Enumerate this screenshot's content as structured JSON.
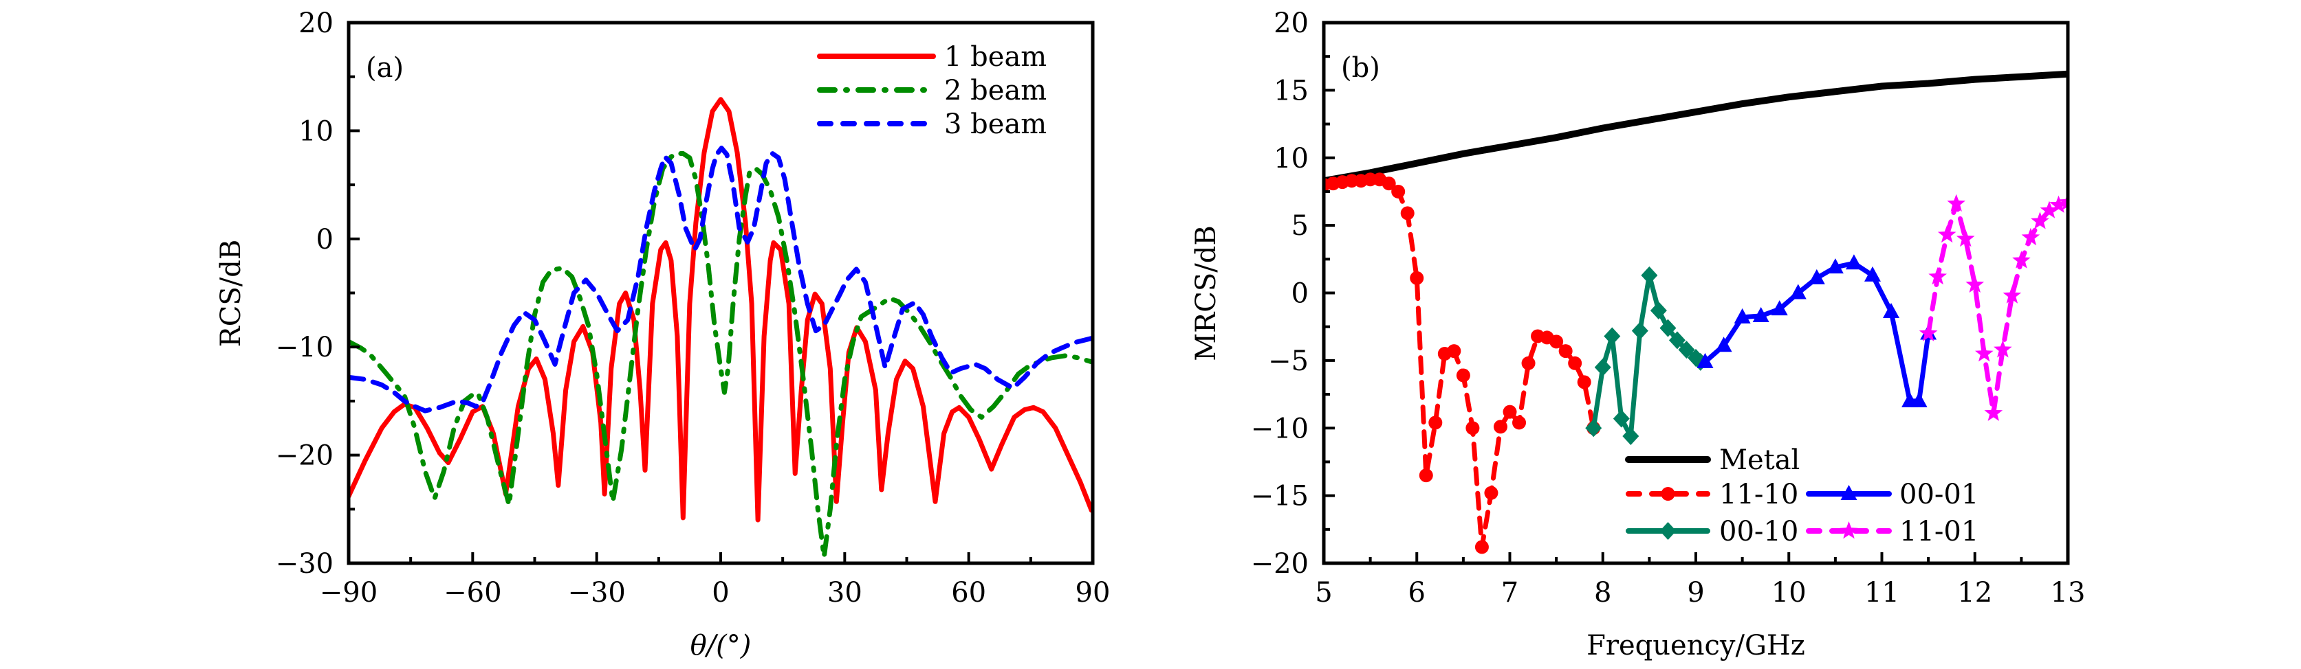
{
  "chart_data": [
    {
      "id": "a",
      "type": "line",
      "panel_label": "(a)",
      "title": "",
      "xlabel": "θ/(°)",
      "ylabel": "RCS/dB",
      "xlim": [
        -90,
        90
      ],
      "ylim": [
        -30,
        20
      ],
      "xticks": [
        -90,
        -60,
        -30,
        0,
        30,
        60,
        90
      ],
      "xtick_labels": [
        "−90",
        "−60",
        "−30",
        "0",
        "30",
        "60",
        "90"
      ],
      "yticks": [
        -30,
        -20,
        -10,
        0,
        10,
        20
      ],
      "ytick_labels": [
        "−30",
        "−20",
        "−10",
        "0",
        "10",
        "20"
      ],
      "x_minor_step": 15,
      "y_minor_step": 5,
      "grid": false,
      "legend_position": "top-right",
      "series": [
        {
          "name": "1 beam",
          "color": "#ff0000",
          "style": "solid",
          "x": [
            -90,
            -86,
            -82,
            -79,
            -76.5,
            -74,
            -71,
            -68,
            -65.9,
            -63,
            -60,
            -57.6,
            -55,
            -52,
            -49,
            -46.5,
            -44.6,
            -42.5,
            -40.5,
            -39.3,
            -37.5,
            -35.5,
            -33.3,
            -31,
            -29,
            -28.1,
            -26.5,
            -24.5,
            -23,
            -21,
            -19.5,
            -18.3,
            -16.5,
            -14.5,
            -13.3,
            -12,
            -10.5,
            -9.1,
            -7.5,
            -6,
            -4,
            -2,
            0,
            2,
            4,
            6,
            7.5,
            9.0,
            10.5,
            12,
            12.8,
            14.5,
            16.5,
            18,
            19.5,
            21,
            22.8,
            24.5,
            26.5,
            28,
            29.5,
            31,
            32.9,
            35,
            37.5,
            38.9,
            40.5,
            42.5,
            44.6,
            46.5,
            49,
            51.9,
            54,
            56,
            57.7,
            60,
            62.5,
            65.5,
            68,
            71,
            73.5,
            75.7,
            78,
            81,
            84,
            87,
            89.7
          ],
          "values": [
            -23.8,
            -20.5,
            -17.5,
            -16.0,
            -15.3,
            -15.6,
            -17.5,
            -19.8,
            -20.7,
            -18.5,
            -16.0,
            -15.5,
            -18.0,
            -23.6,
            -15.5,
            -12.0,
            -11.1,
            -13.0,
            -18.0,
            -22.8,
            -14.0,
            -9.5,
            -8.1,
            -10.5,
            -17.0,
            -23.6,
            -12.0,
            -6.0,
            -5.0,
            -7.5,
            -14.0,
            -21.4,
            -6.0,
            -1.0,
            -0.35,
            -2.0,
            -9.0,
            -25.8,
            -6.0,
            1.5,
            8.0,
            11.8,
            12.9,
            11.8,
            8.0,
            1.5,
            -6.0,
            -26.0,
            -9.0,
            -2.0,
            -0.35,
            -1.0,
            -6.0,
            -21.7,
            -14.0,
            -7.5,
            -5.1,
            -6.0,
            -12.0,
            -24.3,
            -17.0,
            -10.5,
            -8.2,
            -9.5,
            -14.0,
            -23.2,
            -18.0,
            -13.0,
            -11.3,
            -12.0,
            -15.5,
            -24.3,
            -18.0,
            -16.0,
            -15.6,
            -16.5,
            -18.5,
            -21.3,
            -19.0,
            -16.5,
            -15.8,
            -15.6,
            -16.0,
            -17.5,
            -20.0,
            -22.5,
            -25.1
          ]
        },
        {
          "name": "2 beam",
          "color": "#008c00",
          "style": "dash-dot",
          "x": [
            -90,
            -87,
            -84.8,
            -81,
            -78,
            -76.5,
            -74,
            -71.5,
            -69.2,
            -67,
            -64.5,
            -62,
            -60,
            -58.7,
            -56.5,
            -54,
            -51.2,
            -49,
            -47,
            -45,
            -43,
            -41,
            -38.3,
            -36,
            -34,
            -32,
            -30,
            -28,
            -26.1,
            -24,
            -22,
            -20,
            -18,
            -16,
            -14,
            -12,
            -10.5,
            -9.1,
            -7.5,
            -6,
            -4.5,
            -3,
            -1.5,
            0,
            0.9,
            1.8,
            3,
            4.5,
            6,
            7,
            8.5,
            10,
            12,
            14,
            16,
            18,
            20,
            22,
            23.5,
            25,
            26.5,
            28,
            30,
            32,
            34,
            37.3,
            40.8,
            43,
            45.5,
            48,
            50.8,
            53,
            55.6,
            58,
            60.5,
            63.1,
            66,
            69.4,
            72,
            74.5,
            76.9,
            80,
            83.5,
            86.5,
            89.9
          ],
          "values": [
            -9.5,
            -10.1,
            -10.7,
            -12.4,
            -13.8,
            -14.5,
            -17.5,
            -21.5,
            -24.0,
            -21.5,
            -17.5,
            -15.0,
            -14.4,
            -14.3,
            -16.5,
            -20.5,
            -24.6,
            -18.0,
            -12.0,
            -7.0,
            -4.0,
            -2.9,
            -2.7,
            -3.5,
            -5.5,
            -8.0,
            -12.5,
            -18.5,
            -24.3,
            -19.5,
            -13.0,
            -6.5,
            -1.0,
            3.5,
            6.5,
            7.6,
            7.9,
            7.9,
            7.5,
            5.5,
            2.0,
            -2.5,
            -8.0,
            -12.0,
            -14.2,
            -12.0,
            -6.0,
            0.0,
            4.0,
            6.2,
            6.5,
            6.0,
            4.5,
            2.0,
            -2.0,
            -7.0,
            -13.0,
            -19.5,
            -25.0,
            -29.4,
            -25.0,
            -19.0,
            -13.0,
            -9.5,
            -7.2,
            -6.4,
            -5.5,
            -5.8,
            -6.8,
            -8.0,
            -9.7,
            -11.2,
            -12.8,
            -14.5,
            -15.8,
            -16.5,
            -15.5,
            -13.9,
            -12.5,
            -11.8,
            -11.4,
            -11.0,
            -10.8,
            -11.0,
            -11.4
          ]
        },
        {
          "name": "3 beam",
          "color": "#0000ff",
          "style": "dashed",
          "x": [
            -90,
            -86,
            -82,
            -79,
            -76.5,
            -74,
            -71.5,
            -68,
            -63.7,
            -61,
            -59.2,
            -57.5,
            -55.9,
            -53,
            -50,
            -47.6,
            -45,
            -42.5,
            -40.1,
            -38,
            -35.5,
            -32.6,
            -30,
            -27.1,
            -25,
            -22.5,
            -20,
            -18,
            -16,
            -14.5,
            -13.5,
            -12,
            -10,
            -8.5,
            -6.3,
            -5,
            -3.5,
            -2,
            -1,
            0.2,
            1.5,
            3,
            4.5,
            6.5,
            8,
            9.5,
            11,
            12.5,
            14,
            15.5,
            17,
            19,
            21,
            23,
            25,
            27,
            29,
            30.5,
            32.8,
            35,
            37.5,
            39.8,
            42,
            44,
            46.9,
            49,
            51,
            53.5,
            55.7,
            58,
            61.6,
            64,
            67,
            70.7,
            73.5,
            76.5,
            79.5,
            82.4,
            85.5,
            89.7
          ],
          "values": [
            -12.8,
            -13.0,
            -13.5,
            -14.2,
            -15.0,
            -15.5,
            -15.9,
            -15.6,
            -15.0,
            -15.2,
            -15.5,
            -15.0,
            -13.5,
            -10.5,
            -8.0,
            -6.8,
            -7.5,
            -9.5,
            -11.6,
            -8.5,
            -5.0,
            -3.8,
            -5.0,
            -7.1,
            -8.5,
            -7.5,
            -3.5,
            1.0,
            4.5,
            6.5,
            7.6,
            7.0,
            4.0,
            1.0,
            -1.0,
            0.0,
            3.5,
            6.5,
            7.8,
            8.4,
            7.8,
            5.0,
            1.0,
            -0.3,
            1.0,
            4.0,
            7.0,
            7.9,
            7.5,
            5.5,
            2.0,
            -2.5,
            -6.0,
            -8.5,
            -8.0,
            -6.5,
            -5.0,
            -3.8,
            -2.8,
            -4.0,
            -8.0,
            -11.9,
            -9.0,
            -6.5,
            -5.9,
            -7.0,
            -9.0,
            -11.0,
            -12.4,
            -12.0,
            -11.6,
            -12.0,
            -13.0,
            -13.8,
            -12.8,
            -11.5,
            -10.6,
            -10.1,
            -9.6,
            -9.2
          ]
        }
      ]
    },
    {
      "id": "b",
      "type": "line",
      "panel_label": "(b)",
      "title": "",
      "xlabel": "Frequency/GHz",
      "ylabel": "MRCS/dB",
      "xlim": [
        5,
        13
      ],
      "ylim": [
        -20,
        20
      ],
      "xticks": [
        5,
        6,
        7,
        8,
        9,
        10,
        11,
        12,
        13
      ],
      "xtick_labels": [
        "5",
        "6",
        "7",
        "8",
        "9",
        "10",
        "11",
        "12",
        "13"
      ],
      "yticks": [
        -20,
        -15,
        -10,
        -5,
        0,
        5,
        10,
        15,
        20
      ],
      "ytick_labels": [
        "−20",
        "−15",
        "−10",
        "−5",
        "0",
        "5",
        "10",
        "15",
        "20"
      ],
      "x_minor_step": 0.5,
      "y_minor_step": 2.5,
      "grid": false,
      "legend_position": "bottom-center",
      "series": [
        {
          "name": "Metal",
          "color": "#000000",
          "style": "solid",
          "marker": "none",
          "x": [
            5,
            5.5,
            6,
            6.5,
            7,
            7.5,
            8,
            8.5,
            9,
            9.5,
            10,
            10.5,
            11,
            11.5,
            12,
            12.5,
            13
          ],
          "values": [
            8.3,
            8.9,
            9.6,
            10.3,
            10.9,
            11.5,
            12.2,
            12.8,
            13.4,
            14.0,
            14.5,
            14.9,
            15.3,
            15.5,
            15.8,
            16.0,
            16.2
          ]
        },
        {
          "name": "11-10",
          "color": "#ff0000",
          "style": "dashed",
          "marker": "circle",
          "x": [
            5.0,
            5.1,
            5.2,
            5.3,
            5.4,
            5.5,
            5.6,
            5.7,
            5.8,
            5.9,
            6.0,
            6.1,
            6.2,
            6.3,
            6.4,
            6.5,
            6.6,
            6.7,
            6.8,
            6.9,
            7.0,
            7.1,
            7.2,
            7.3,
            7.4,
            7.5,
            7.6,
            7.7,
            7.8,
            7.9
          ],
          "values": [
            8.0,
            8.1,
            8.2,
            8.3,
            8.3,
            8.4,
            8.4,
            8.1,
            7.5,
            5.9,
            1.1,
            -13.5,
            -9.6,
            -4.5,
            -4.3,
            -6.1,
            -10.0,
            -18.8,
            -14.8,
            -9.9,
            -8.8,
            -9.6,
            -5.2,
            -3.2,
            -3.3,
            -3.6,
            -4.3,
            -5.2,
            -6.6,
            -10.0
          ]
        },
        {
          "name": "00-10",
          "color": "#008060",
          "style": "solid",
          "marker": "diamond",
          "x": [
            7.9,
            8.0,
            8.1,
            8.2,
            8.3,
            8.4,
            8.5,
            8.6,
            8.7,
            8.8,
            8.9,
            9.0,
            9.05
          ],
          "values": [
            -10.0,
            -5.5,
            -3.2,
            -9.3,
            -10.6,
            -2.8,
            1.3,
            -1.3,
            -2.6,
            -3.5,
            -4.2,
            -4.8,
            -5.1
          ]
        },
        {
          "name": "00-01",
          "color": "#0000ff",
          "style": "solid",
          "marker": "triangle",
          "x": [
            9.1,
            9.3,
            9.5,
            9.7,
            9.9,
            10.1,
            10.3,
            10.5,
            10.7,
            10.9,
            11.1,
            11.3,
            11.4,
            11.5
          ],
          "values": [
            -5.1,
            -3.9,
            -1.8,
            -1.7,
            -1.2,
            0.0,
            1.1,
            1.9,
            2.2,
            1.3,
            -1.4,
            -8.0,
            -8.0,
            -3.0
          ]
        },
        {
          "name": "11-01",
          "color": "#ff00ff",
          "style": "dashed",
          "marker": "star",
          "x": [
            11.5,
            11.6,
            11.7,
            11.8,
            11.9,
            12.0,
            12.1,
            12.2,
            12.3,
            12.4,
            12.5,
            12.6,
            12.7,
            12.8,
            12.9,
            13.0
          ],
          "values": [
            -3.0,
            1.2,
            4.3,
            6.6,
            4.0,
            0.6,
            -4.5,
            -8.9,
            -4.2,
            -0.2,
            2.4,
            4.1,
            5.3,
            6.1,
            6.5,
            6.7
          ]
        }
      ]
    }
  ]
}
